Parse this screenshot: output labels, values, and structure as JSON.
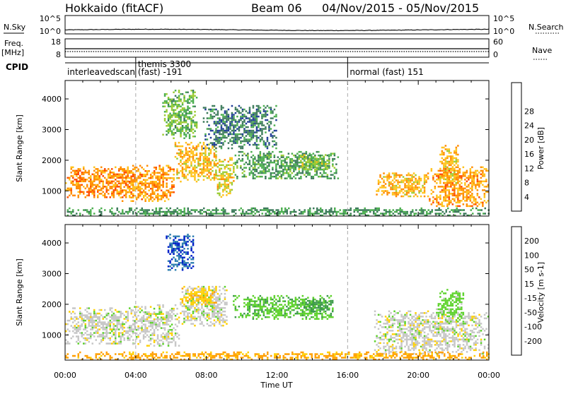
{
  "header": {
    "radar": "Hokkaido (fitACF)",
    "beam": "Beam 06",
    "date_range": "04/Nov/2015 - 05/Nov/2015"
  },
  "top_panels": {
    "nsky_label": "N.Sky",
    "nsky_ticks": [
      "10^5",
      "10^0"
    ],
    "nsearch_label": "N.Search",
    "freq_label_1": "Freq.",
    "freq_label_2": "[MHz]",
    "freq_ticks": [
      "18",
      "8"
    ],
    "nave_ticks": [
      "60",
      "0"
    ],
    "nave_label": "Nave",
    "cpid_label": "CPID",
    "cpid_segments": [
      {
        "start_h": 0,
        "end_h": 4,
        "line1": "",
        "line2": "interleavedscan"
      },
      {
        "start_h": 4,
        "end_h": 16,
        "line1": "themis 3300",
        "line2": "(fast) -191"
      },
      {
        "start_h": 16,
        "end_h": 24,
        "line1": "",
        "line2": "normal (fast) 151"
      }
    ]
  },
  "chart_data": [
    {
      "type": "heatmap",
      "name": "power",
      "ylabel": "Slant Range [km]",
      "xlabel": "",
      "xlim": [
        0,
        24
      ],
      "ylim": [
        180,
        4600
      ],
      "yticks": [
        1000,
        2000,
        3000,
        4000
      ],
      "colorbar_label": "Power [dB]",
      "colorbar_ticks": [
        4,
        8,
        12,
        16,
        20,
        24,
        28
      ],
      "colorbar_colors": [
        "#0000ff",
        "#1e3c96",
        "#3c7a5a",
        "#4caf50",
        "#9ccc34",
        "#ffc21a",
        "#ff8c00",
        "#ff4a00",
        "#ff0000"
      ],
      "regions": [
        {
          "x": [
            0.0,
            3.7
          ],
          "y": [
            800,
            1800
          ],
          "level": 26
        },
        {
          "x": [
            3.0,
            6.2
          ],
          "y": [
            650,
            1850
          ],
          "level": 25
        },
        {
          "x": [
            6.2,
            8.6
          ],
          "y": [
            1300,
            2600
          ],
          "level": 22
        },
        {
          "x": [
            8.5,
            9.6
          ],
          "y": [
            800,
            2100
          ],
          "level": 21
        },
        {
          "x": [
            9.6,
            15.5
          ],
          "y": [
            1400,
            2300
          ],
          "level": 13
        },
        {
          "x": [
            13.2,
            15.0
          ],
          "y": [
            1700,
            2200
          ],
          "level": 17
        },
        {
          "x": [
            17.6,
            20.6
          ],
          "y": [
            800,
            1600
          ],
          "level": 23
        },
        {
          "x": [
            20.6,
            24.0
          ],
          "y": [
            500,
            1800
          ],
          "level": 25
        },
        {
          "x": [
            21.2,
            22.3
          ],
          "y": [
            1200,
            2500
          ],
          "level": 23
        },
        {
          "x": [
            5.5,
            7.5
          ],
          "y": [
            2700,
            4300
          ],
          "level": 15
        },
        {
          "x": [
            7.8,
            12.0
          ],
          "y": [
            2400,
            3800
          ],
          "level": 10
        },
        {
          "x": [
            0.0,
            24.0
          ],
          "y": [
            220,
            460
          ],
          "level": 12
        }
      ]
    },
    {
      "type": "heatmap",
      "name": "velocity",
      "ylabel": "Slant Range [km]",
      "xlabel": "Time UT",
      "xlim": [
        0,
        24
      ],
      "ylim": [
        180,
        4600
      ],
      "yticks": [
        1000,
        2000,
        3000,
        4000
      ],
      "xticks": [
        "00:00",
        "04:00",
        "08:00",
        "12:00",
        "16:00",
        "20:00",
        "00:00"
      ],
      "colorbar_label": "Velocity [m s-1]",
      "colorbar_ticks": [
        200,
        100,
        50,
        15,
        -15,
        -50,
        -100,
        -200
      ],
      "colorbar_colors": [
        "#0020c8",
        "#2f7fb0",
        "#3c9a4a",
        "#5cd22a",
        "#c6c6c6",
        "#ffd000",
        "#ff9f00",
        "#ff5a00",
        "#ff0000"
      ],
      "regions": [
        {
          "x": [
            0.0,
            4.0
          ],
          "y": [
            700,
            1900
          ],
          "level": 0
        },
        {
          "x": [
            3.8,
            6.5
          ],
          "y": [
            650,
            2000
          ],
          "level": 0
        },
        {
          "x": [
            6.5,
            9.2
          ],
          "y": [
            1300,
            2600
          ],
          "level": 0
        },
        {
          "x": [
            5.7,
            7.3
          ],
          "y": [
            3100,
            4300
          ],
          "level": 200
        },
        {
          "x": [
            9.5,
            15.2
          ],
          "y": [
            1500,
            2300
          ],
          "level": 40
        },
        {
          "x": [
            13.5,
            15.2
          ],
          "y": [
            1750,
            2200
          ],
          "level": 70
        },
        {
          "x": [
            17.5,
            24.0
          ],
          "y": [
            400,
            1800
          ],
          "level": 0
        },
        {
          "x": [
            21.0,
            22.6
          ],
          "y": [
            1400,
            2500
          ],
          "level": 30
        },
        {
          "x": [
            0.0,
            24.0
          ],
          "y": [
            220,
            460
          ],
          "level": -60
        },
        {
          "x": [
            6.5,
            8.6
          ],
          "y": [
            2000,
            2600
          ],
          "level": -40
        }
      ]
    }
  ]
}
